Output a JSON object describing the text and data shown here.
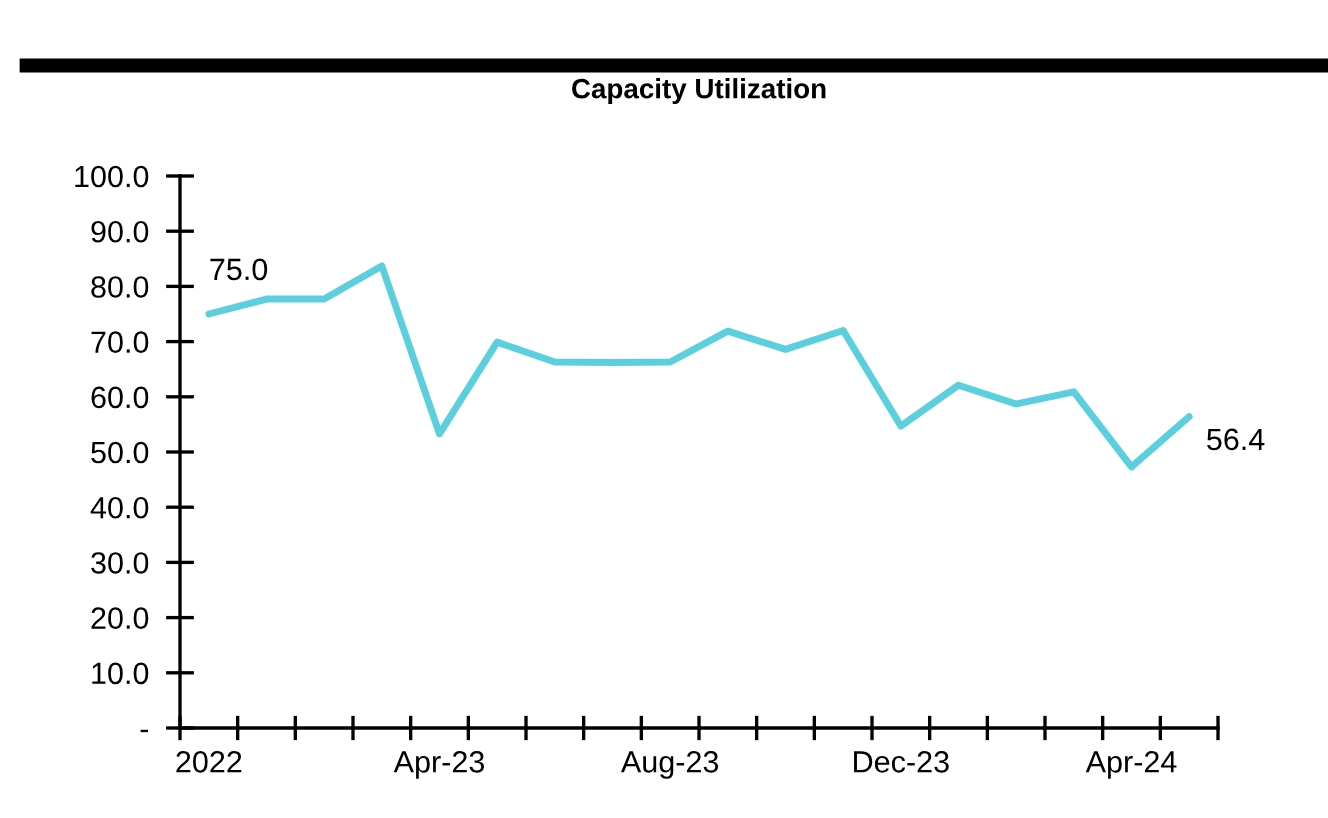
{
  "chart_data": {
    "type": "line",
    "title": "Capacity Utilization",
    "categories": [
      "2022",
      null,
      null,
      null,
      "Apr-23",
      null,
      null,
      null,
      "Aug-23",
      null,
      null,
      null,
      "Dec-23",
      null,
      null,
      null,
      "Apr-24",
      null
    ],
    "series": [
      {
        "color": "#5bcfde",
        "values": [
          75.0,
          77.7,
          77.7,
          83.7,
          53.3,
          69.9,
          66.3,
          66.2,
          66.3,
          71.9,
          68.6,
          72.0,
          54.7,
          62.1,
          58.7,
          60.9,
          47.3,
          56.4
        ],
        "value_labels": [
          "75.0",
          null,
          null,
          null,
          null,
          null,
          null,
          null,
          null,
          null,
          null,
          null,
          null,
          null,
          null,
          null,
          null,
          "56.4"
        ]
      }
    ],
    "ylim": [
      0,
      100
    ],
    "yticks": [
      {
        "value": 0,
        "label": "-"
      },
      {
        "value": 10,
        "label": "10.0"
      },
      {
        "value": 20,
        "label": "20.0"
      },
      {
        "value": 30,
        "label": "30.0"
      },
      {
        "value": 40,
        "label": "40.0"
      },
      {
        "value": 50,
        "label": "50.0"
      },
      {
        "value": 60,
        "label": "60.0"
      },
      {
        "value": 70,
        "label": "70.0"
      },
      {
        "value": 80,
        "label": "80.0"
      },
      {
        "value": 90,
        "label": "90.0"
      },
      {
        "value": 100,
        "label": "100.0"
      }
    ],
    "grid": false,
    "marker": "none",
    "line_style": "solid"
  }
}
